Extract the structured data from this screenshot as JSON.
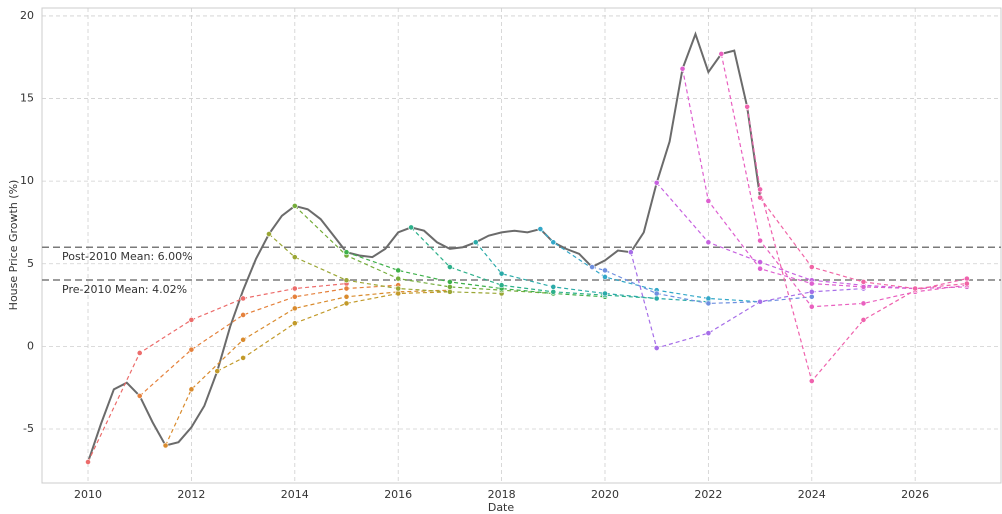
{
  "chart_data": {
    "type": "line",
    "x_label": "Date",
    "y_label": "House Price Growth (%)",
    "xlim": [
      2009.11,
      2027.66
    ],
    "ylim": [
      -8.27,
      20.48
    ],
    "xticks": [
      2010,
      2012,
      2014,
      2016,
      2018,
      2020,
      2022,
      2024,
      2026
    ],
    "yticks": [
      -5,
      0,
      5,
      10,
      15,
      20
    ],
    "grid": true,
    "reference_lines": [
      {
        "value": 6.0,
        "label": "Post-2010 Mean: 6.00%",
        "color": "#7a7a7a"
      },
      {
        "value": 4.02,
        "label": "Pre-2010 Mean: 4.02%",
        "color": "#7a7a7a"
      }
    ],
    "series": [
      {
        "color": "#6b6b6b",
        "dashed": false,
        "markers": false,
        "x": [
          2010,
          2010.25,
          2010.5,
          2010.75,
          2011,
          2011.25,
          2011.5,
          2011.75,
          2012,
          2012.25,
          2012.5,
          2012.75,
          2013,
          2013.25,
          2013.5,
          2013.75,
          2014,
          2014.25,
          2014.5,
          2014.75,
          2015,
          2015.25,
          2015.5,
          2015.75,
          2016,
          2016.25,
          2016.5,
          2016.75,
          2017,
          2017.25,
          2017.5,
          2017.75,
          2018,
          2018.25,
          2018.5,
          2018.75,
          2019,
          2019.25,
          2019.5,
          2019.75,
          2020,
          2020.25,
          2020.5,
          2020.75,
          2021,
          2021.25,
          2021.5,
          2021.75,
          2022,
          2022.25,
          2022.5,
          2022.75,
          2023
        ],
        "values": [
          -7.0,
          -4.7,
          -2.6,
          -2.2,
          -3.0,
          -4.6,
          -6.0,
          -5.8,
          -4.9,
          -3.6,
          -1.5,
          1.2,
          3.4,
          5.3,
          6.8,
          7.9,
          8.5,
          8.3,
          7.7,
          6.7,
          5.7,
          5.5,
          5.4,
          5.9,
          6.9,
          7.2,
          7.0,
          6.3,
          5.9,
          6.0,
          6.3,
          6.7,
          6.9,
          7.0,
          6.9,
          7.1,
          6.3,
          5.9,
          5.6,
          4.8,
          5.2,
          5.8,
          5.7,
          6.9,
          9.9,
          12.4,
          16.8,
          18.9,
          16.6,
          17.7,
          17.9,
          14.5,
          9.0
        ]
      },
      {
        "color": "#ec6c6b",
        "dashed": true,
        "markers": true,
        "x": [
          2010,
          2011,
          2012,
          2013,
          2014,
          2015
        ],
        "values": [
          -7.0,
          -0.4,
          1.6,
          2.9,
          3.5,
          3.8
        ]
      },
      {
        "color": "#e5813c",
        "dashed": true,
        "markers": true,
        "x": [
          2011,
          2012,
          2013,
          2014,
          2015,
          2016
        ],
        "values": [
          -3.0,
          -0.2,
          1.9,
          3.0,
          3.5,
          3.7
        ]
      },
      {
        "color": "#d98b2e",
        "dashed": true,
        "markers": true,
        "x": [
          2011.5,
          2012,
          2013,
          2014,
          2015,
          2016,
          2017
        ],
        "values": [
          -6.0,
          -2.6,
          0.4,
          2.3,
          3.0,
          3.3,
          3.4
        ]
      },
      {
        "color": "#c29a2a",
        "dashed": true,
        "markers": true,
        "x": [
          2012.5,
          2013,
          2014,
          2015,
          2016,
          2017
        ],
        "values": [
          -1.5,
          -0.7,
          1.4,
          2.6,
          3.2,
          3.3
        ]
      },
      {
        "color": "#9aa634",
        "dashed": true,
        "markers": true,
        "x": [
          2013.5,
          2014,
          2015,
          2016,
          2017,
          2018
        ],
        "values": [
          6.8,
          5.4,
          4.0,
          3.5,
          3.3,
          3.2
        ]
      },
      {
        "color": "#74ac3a",
        "dashed": true,
        "markers": true,
        "x": [
          2014,
          2015,
          2016,
          2017,
          2018,
          2019
        ],
        "values": [
          8.5,
          5.5,
          4.1,
          3.6,
          3.4,
          3.2
        ]
      },
      {
        "color": "#3eb04a",
        "dashed": true,
        "markers": true,
        "x": [
          2015,
          2016,
          2017,
          2018,
          2019,
          2020
        ],
        "values": [
          5.7,
          4.6,
          3.9,
          3.5,
          3.2,
          3.0
        ]
      },
      {
        "color": "#2db08a",
        "dashed": true,
        "markers": true,
        "x": [
          2016.25,
          2017,
          2018,
          2019,
          2020,
          2021
        ],
        "values": [
          7.2,
          4.8,
          3.7,
          3.3,
          3.1,
          2.9
        ]
      },
      {
        "color": "#2aaaa8",
        "dashed": true,
        "markers": true,
        "x": [
          2017.5,
          2018,
          2019,
          2020,
          2021,
          2022
        ],
        "values": [
          6.3,
          4.4,
          3.6,
          3.2,
          2.9,
          2.7
        ]
      },
      {
        "color": "#33a7c8",
        "dashed": true,
        "markers": true,
        "x": [
          2018.75,
          2019,
          2020,
          2021,
          2022,
          2023
        ],
        "values": [
          7.1,
          6.3,
          4.2,
          3.4,
          2.9,
          2.7
        ]
      },
      {
        "color": "#6e8fe0",
        "dashed": true,
        "markers": true,
        "x": [
          2019.75,
          2020,
          2021,
          2022,
          2023,
          2024
        ],
        "values": [
          4.8,
          4.6,
          3.2,
          2.6,
          2.7,
          3.0
        ]
      },
      {
        "color": "#a66ee8",
        "dashed": true,
        "markers": true,
        "x": [
          2020.5,
          2021,
          2022,
          2023,
          2024,
          2025
        ],
        "values": [
          5.7,
          -0.1,
          0.8,
          2.7,
          3.3,
          3.5
        ]
      },
      {
        "color": "#c661e0",
        "dashed": true,
        "markers": true,
        "x": [
          2021,
          2022,
          2023,
          2024,
          2025,
          2026
        ],
        "values": [
          9.9,
          6.3,
          5.1,
          4.0,
          3.7,
          3.5
        ]
      },
      {
        "color": "#de5fd0",
        "dashed": true,
        "markers": true,
        "x": [
          2021.5,
          2022,
          2023,
          2024,
          2025,
          2026,
          2027
        ],
        "values": [
          16.8,
          8.8,
          4.7,
          3.8,
          3.6,
          3.5,
          3.6
        ]
      },
      {
        "color": "#e95fbf",
        "dashed": true,
        "markers": true,
        "x": [
          2022.25,
          2023,
          2024,
          2025,
          2026,
          2027
        ],
        "values": [
          17.7,
          6.4,
          2.4,
          2.6,
          3.3,
          3.7
        ]
      },
      {
        "color": "#ef62ad",
        "dashed": true,
        "markers": true,
        "x": [
          2022.75,
          2023,
          2024,
          2025,
          2026,
          2027
        ],
        "values": [
          14.5,
          9.5,
          -2.1,
          1.6,
          3.4,
          4.1
        ]
      },
      {
        "color": "#f064a5",
        "dashed": true,
        "markers": true,
        "x": [
          2023,
          2024,
          2025,
          2026,
          2027
        ],
        "values": [
          9.0,
          4.8,
          3.9,
          3.5,
          3.8
        ]
      }
    ]
  }
}
